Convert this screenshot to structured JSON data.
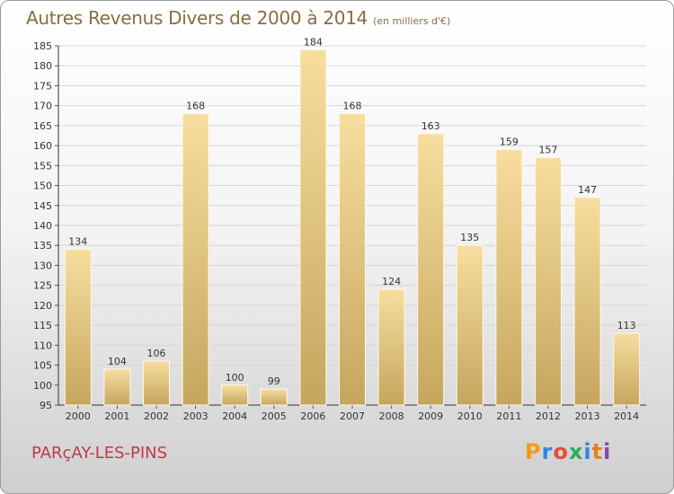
{
  "title": "Autres Revenus Divers de 2000 à 2014",
  "subtitle": "(en milliers d'€)",
  "location": "PARçAY-LES-PINS",
  "brand": "Proxiti",
  "brand_colors": [
    "#f39c12",
    "#2e86de",
    "#e74c3c",
    "#27ae60",
    "#2e86de",
    "#e67e22",
    "#8e44ad"
  ],
  "colors": {
    "bar_light": "#f6dc9a",
    "bar_dark": "#c8a860",
    "text": "#8a6d3b",
    "place": "#c0394a"
  },
  "chart_data": {
    "type": "bar",
    "categories": [
      "2000",
      "2001",
      "2002",
      "2003",
      "2004",
      "2005",
      "2006",
      "2007",
      "2008",
      "2009",
      "2010",
      "2011",
      "2012",
      "2013",
      "2014"
    ],
    "values": [
      134,
      104,
      106,
      168,
      100,
      99,
      184,
      168,
      124,
      163,
      135,
      159,
      157,
      147,
      113
    ],
    "ylim": [
      95,
      185
    ],
    "yticks": [
      95,
      100,
      105,
      110,
      115,
      120,
      125,
      130,
      135,
      140,
      145,
      150,
      155,
      160,
      165,
      170,
      175,
      180,
      185
    ],
    "grid": true
  }
}
